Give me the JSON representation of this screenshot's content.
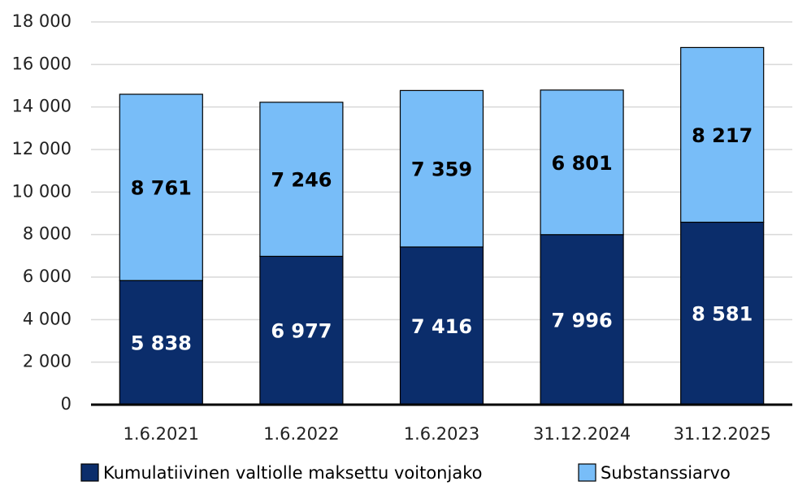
{
  "chart_data": {
    "type": "stacked_bar",
    "categories": [
      "1.6.2021",
      "1.6.2022",
      "1.6.2023",
      "31.12.2024",
      "31.12.2025"
    ],
    "series": [
      {
        "name": "Kumulatiivinen valtiolle maksettu voitonjako",
        "color": "#0b2d6b",
        "label_color": "#ffffff",
        "values": [
          5838,
          6977,
          7416,
          7996,
          8581
        ],
        "value_labels": [
          "5 838",
          "6 977",
          "7 416",
          "7 996",
          "8 581"
        ]
      },
      {
        "name": "Substanssiarvo",
        "color": "#78bdf8",
        "label_color": "#000000",
        "values": [
          8761,
          7246,
          7359,
          6801,
          8217
        ],
        "value_labels": [
          "8 761",
          "7 246",
          "7 359",
          "6 801",
          "8 217"
        ]
      }
    ],
    "ylim": [
      0,
      18000
    ],
    "yticks": [
      {
        "value": 0,
        "label": "0"
      },
      {
        "value": 2000,
        "label": "2 000"
      },
      {
        "value": 4000,
        "label": "4 000"
      },
      {
        "value": 6000,
        "label": "6 000"
      },
      {
        "value": 8000,
        "label": "8 000"
      },
      {
        "value": 10000,
        "label": "10 000"
      },
      {
        "value": 12000,
        "label": "12 000"
      },
      {
        "value": 14000,
        "label": "14 000"
      },
      {
        "value": 16000,
        "label": "16 000"
      },
      {
        "value": 18000,
        "label": "18 000"
      }
    ],
    "grid": true,
    "legend": "bottom"
  }
}
